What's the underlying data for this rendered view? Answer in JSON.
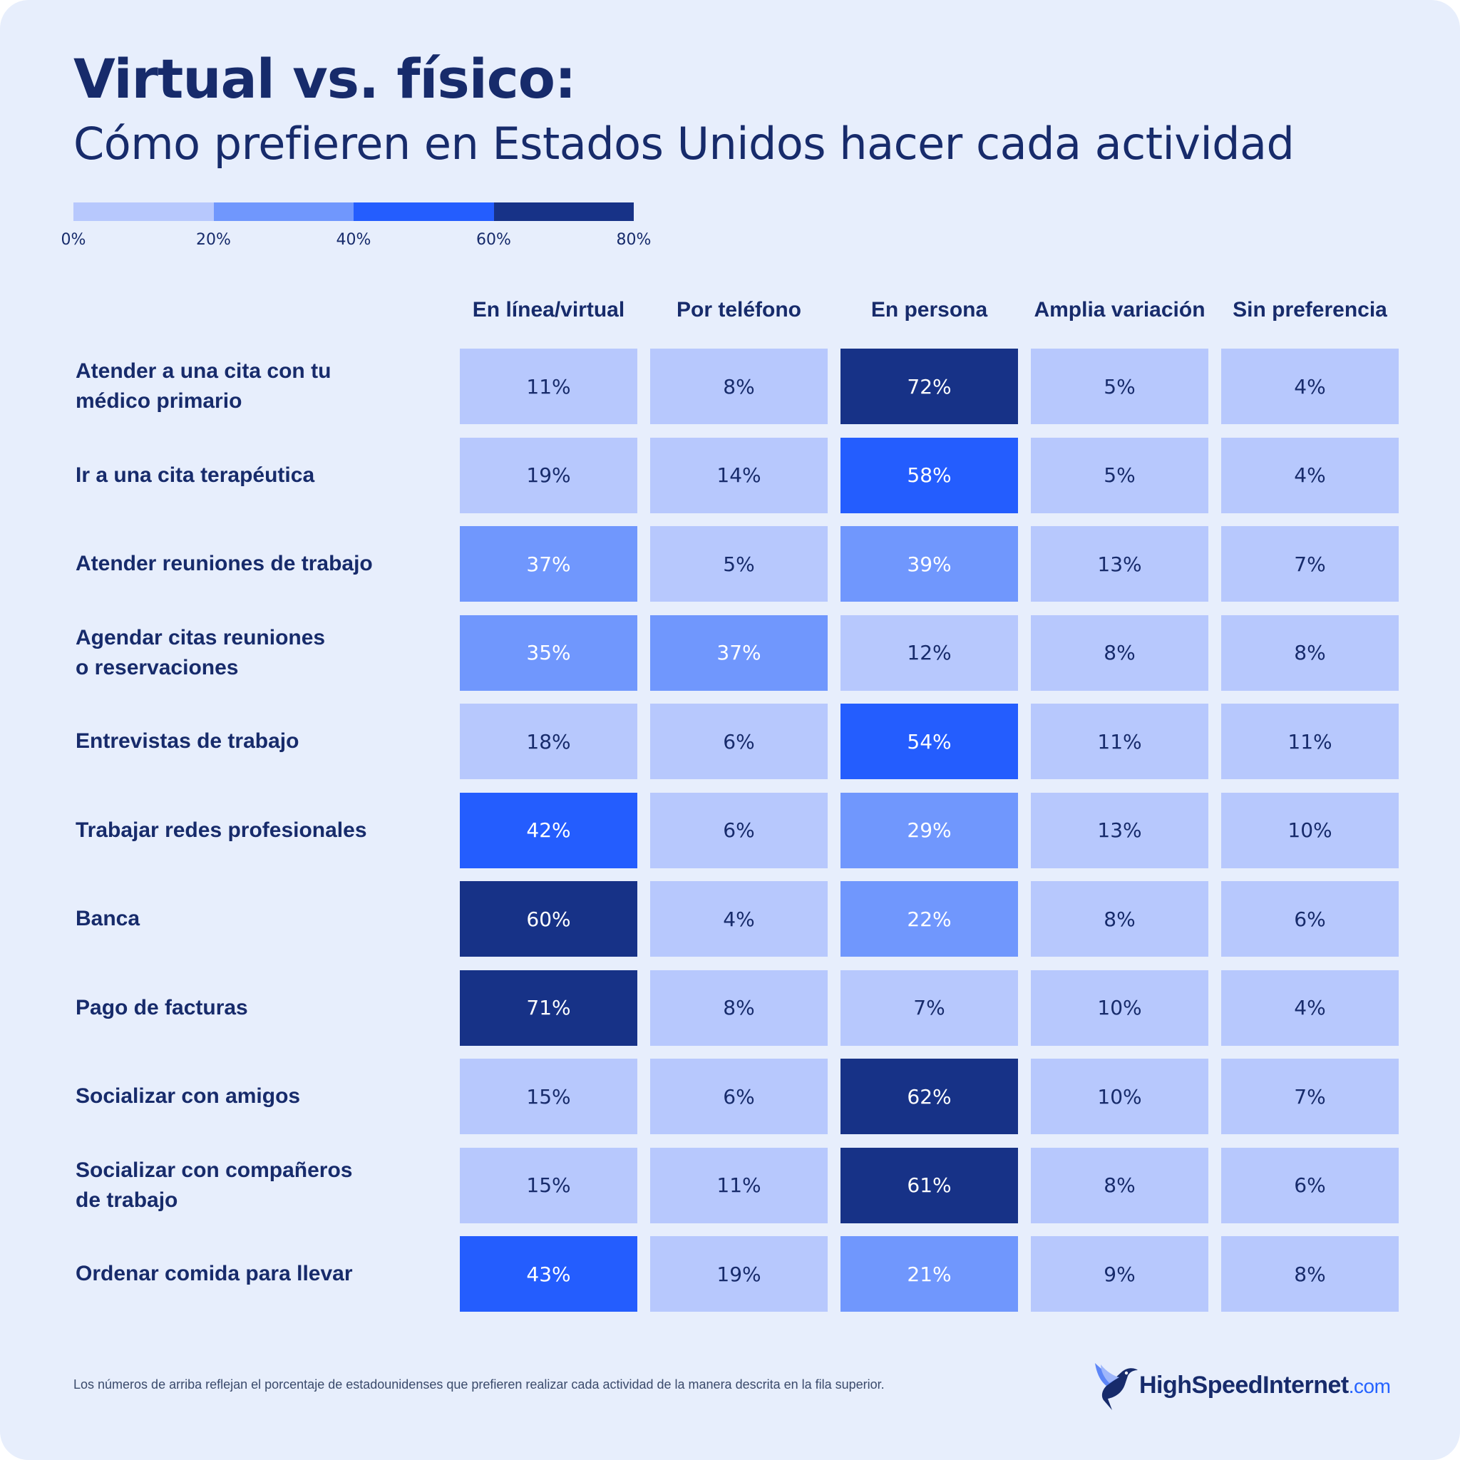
{
  "title": "Virtual vs. físico:",
  "subtitle": "Cómo prefieren en Estados Unidos hacer cada actividad",
  "legend": {
    "ticks": [
      "0%",
      "20%",
      "40%",
      "60%",
      "80%"
    ],
    "colors": [
      "#b7c8fd",
      "#7097fd",
      "#245dfe",
      "#173287"
    ]
  },
  "footnote": "Los números de arriba reflejan el porcentaje de estadounidenses que prefieren realizar cada actividad de la manera descrita en la fila superior.",
  "brand": {
    "name": "HighSpeedInternet",
    "domain": ".com",
    "logo": "hummingbird-logo"
  },
  "chart_data": {
    "type": "heatmap",
    "title": "Virtual vs. físico:",
    "subtitle": "Cómo prefieren en Estados Unidos hacer cada actividad",
    "unit": "%",
    "value_range": [
      0,
      80
    ],
    "color_scale": [
      {
        "from": 0,
        "to": 20,
        "color": "#b7c8fd"
      },
      {
        "from": 20,
        "to": 40,
        "color": "#7097fd"
      },
      {
        "from": 40,
        "to": 60,
        "color": "#245dfe"
      },
      {
        "from": 60,
        "to": 80,
        "color": "#173287"
      }
    ],
    "columns": [
      "En línea/virtual",
      "Por teléfono",
      "En persona",
      "Amplia variación",
      "Sin preferencia"
    ],
    "rows": [
      {
        "label": "Atender a una cita con tu\nmédico primario",
        "values": [
          11,
          8,
          72,
          5,
          4
        ]
      },
      {
        "label": "Ir a una cita terapéutica",
        "values": [
          19,
          14,
          58,
          5,
          4
        ]
      },
      {
        "label": "Atender reuniones de trabajo",
        "values": [
          37,
          5,
          39,
          13,
          7
        ]
      },
      {
        "label": "Agendar citas reuniones\no reservaciones",
        "values": [
          35,
          37,
          12,
          8,
          8
        ]
      },
      {
        "label": "Entrevistas de trabajo",
        "values": [
          18,
          6,
          54,
          11,
          11
        ]
      },
      {
        "label": "Trabajar redes profesionales",
        "values": [
          42,
          6,
          29,
          13,
          10
        ]
      },
      {
        "label": "Banca",
        "values": [
          60,
          4,
          22,
          8,
          6
        ]
      },
      {
        "label": "Pago de facturas",
        "values": [
          71,
          8,
          7,
          10,
          4
        ]
      },
      {
        "label": "Socializar con amigos",
        "values": [
          15,
          6,
          62,
          10,
          7
        ]
      },
      {
        "label": "Socializar con compañeros\nde trabajo",
        "values": [
          15,
          11,
          61,
          8,
          6
        ]
      },
      {
        "label": "Ordenar comida para llevar",
        "values": [
          43,
          19,
          21,
          9,
          8
        ]
      }
    ]
  }
}
